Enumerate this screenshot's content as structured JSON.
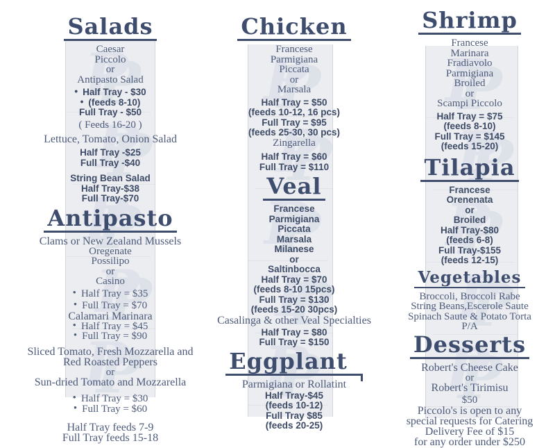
{
  "page": {
    "accent_color": "#3e4d6e",
    "body_text_color": "#4c5a7a",
    "strip_color": "#ecedf0",
    "watermark_letter": "P",
    "watermarks_per_strip": 5
  },
  "columns": [
    {
      "name": "left",
      "sections": [
        {
          "title": "Salads",
          "lines": [
            {
              "text": "Caesar",
              "font": "serif"
            },
            {
              "text": "Piccolo",
              "font": "serif"
            },
            {
              "text": "or",
              "font": "serif"
            },
            {
              "text": "Antipasto Salad",
              "font": "serif"
            },
            {
              "text": "Half Tray - $30",
              "font": "sans",
              "bullet": true,
              "gap_before": 4
            },
            {
              "text": "(feeds 8-10)",
              "font": "sans",
              "bullet": true
            },
            {
              "text": "Full Tray - $50",
              "font": "sans"
            },
            {
              "text": "( Feeds 16-20 )",
              "font": "serif",
              "gap_before": 3
            },
            {
              "text": "Lettuce, Tomato, Onion Salad",
              "font": "serif",
              "wide": true,
              "gap_before": 6
            },
            {
              "text": "Half Tray -$25",
              "font": "sans",
              "gap_before": 5
            },
            {
              "text": "Full Tray -$40",
              "font": "sans"
            },
            {
              "text": "String Bean Salad",
              "font": "sans",
              "gap_before": 8
            },
            {
              "text": "Half Tray-$38",
              "font": "sans"
            },
            {
              "text": "Full Tray-$70",
              "font": "sans"
            }
          ]
        },
        {
          "title": "Antipasto",
          "heading_gap": "mt4",
          "lines": [
            {
              "text": "Clams or New Zealand Mussels",
              "font": "serif",
              "wide": true
            },
            {
              "text": "Oregenate",
              "font": "serif"
            },
            {
              "text": "Possilipo",
              "font": "serif"
            },
            {
              "text": "or",
              "font": "serif"
            },
            {
              "text": "Casino",
              "font": "serif"
            },
            {
              "text": "Half Tray = $35",
              "font": "serif",
              "bullet": true,
              "gap_before": 3
            },
            {
              "text": "Full Tray = $70",
              "font": "serif",
              "bullet": true,
              "gap_before": 3
            },
            {
              "text": "Calamari Marinara",
              "font": "serif",
              "wide": true
            },
            {
              "text": "Half Tray = $45",
              "font": "serif",
              "bullet": true
            },
            {
              "text": "Full Tray = $90",
              "font": "serif",
              "bullet": true
            },
            {
              "text": "Sliced Tomato, Fresh Mozzarella and",
              "font": "serif",
              "wide": true,
              "gap_before": 7
            },
            {
              "text": "Red Roasted Peppers",
              "font": "serif",
              "wide": true
            },
            {
              "text": "or",
              "font": "serif"
            },
            {
              "text": "Sun-dried Tomato and Mozzarella",
              "font": "serif",
              "wide": true
            },
            {
              "text": "Half Tray = $30",
              "font": "serif",
              "bullet": true,
              "gap_before": 9
            },
            {
              "text": "Full Tray = $60",
              "font": "serif",
              "bullet": true
            },
            {
              "text": "Half Tray feeds 7-9",
              "font": "serif",
              "wide": true,
              "gap_before": 12
            },
            {
              "text": "Full Tray feeds 15-18",
              "font": "serif",
              "wide": true
            }
          ]
        }
      ]
    },
    {
      "name": "center",
      "sections": [
        {
          "title": "Chicken",
          "lines": [
            {
              "text": "Francese",
              "font": "serif"
            },
            {
              "text": "Parmigiana",
              "font": "serif"
            },
            {
              "text": "Piccata",
              "font": "serif"
            },
            {
              "text": "or",
              "font": "serif"
            },
            {
              "text": "Marsala",
              "font": "serif"
            },
            {
              "text": "Half Tray = $50",
              "font": "sans",
              "gap_before": 4
            },
            {
              "text": "(feeds 10-12, 16 pcs)",
              "font": "sans"
            },
            {
              "text": "Full Tray = $95",
              "font": "sans"
            },
            {
              "text": "(feeds 25-30, 30 pcs)",
              "font": "sans"
            },
            {
              "text": "Zingarella",
              "font": "serif"
            },
            {
              "text": "Half Tray = $60",
              "font": "sans",
              "gap_before": 6
            },
            {
              "text": "Full Tray = $110",
              "font": "sans"
            }
          ]
        },
        {
          "title": "Veal",
          "heading_gap": "mt4",
          "lines": [
            {
              "text": "Francese",
              "font": "sans"
            },
            {
              "text": "Parmigiana",
              "font": "sans"
            },
            {
              "text": "Piccata",
              "font": "sans"
            },
            {
              "text": "Marsala",
              "font": "sans"
            },
            {
              "text": "Milanese",
              "font": "sans"
            },
            {
              "text": "or",
              "font": "sans"
            },
            {
              "text": "Saltinbocca",
              "font": "sans"
            },
            {
              "text": "Half Tray = $70",
              "font": "sans"
            },
            {
              "text": "(feeds 8-10 15pcs)",
              "font": "sans"
            },
            {
              "text": "Full Tray = $130",
              "font": "sans"
            },
            {
              "text": "(feeds 15-20  30pcs)",
              "font": "sans"
            },
            {
              "text": "Casalinga & other Veal Specialties",
              "font": "serif",
              "wide": true
            },
            {
              "text": "Half Tray = $80",
              "font": "sans",
              "gap_before": 3
            },
            {
              "text": "Full Tray = $150",
              "font": "sans"
            }
          ]
        },
        {
          "title": "Eggplant",
          "heading_gap": "mt3",
          "underline_tick": true,
          "lines": [
            {
              "text": "Parmigiana or Rollatint",
              "font": "serif",
              "wide": true
            },
            {
              "text": "Half Tray-$45",
              "font": "sans",
              "gap_before": 2
            },
            {
              "text": "(feeds 10-12)",
              "font": "sans"
            },
            {
              "text": "Full Tray $85",
              "font": "sans"
            },
            {
              "text": "(feeds 20-25)",
              "font": "sans"
            }
          ]
        }
      ]
    },
    {
      "name": "right",
      "sections": [
        {
          "title": "Shrimp",
          "lines": [
            {
              "text": "Francese",
              "font": "serif"
            },
            {
              "text": "Marinara",
              "font": "serif"
            },
            {
              "text": "Fradiavolo",
              "font": "serif"
            },
            {
              "text": "Parmigiana",
              "font": "serif"
            },
            {
              "text": "Broiled",
              "font": "serif"
            },
            {
              "text": "or",
              "font": "serif"
            },
            {
              "text": "Scampi Piccolo",
              "font": "serif"
            },
            {
              "text": "Half Tray = $75",
              "font": "sans",
              "gap_before": 4
            },
            {
              "text": "(feeds 8-10)",
              "font": "sans"
            },
            {
              "text": "Full Tray = $145",
              "font": "sans"
            },
            {
              "text": "(feeds 15-20)",
              "font": "sans"
            }
          ]
        },
        {
          "title": "Tilapia",
          "heading_gap": "mt6",
          "lines": [
            {
              "text": "Francese",
              "font": "sans"
            },
            {
              "text": "Orenenata",
              "font": "sans"
            },
            {
              "text": "or",
              "font": "sans"
            },
            {
              "text": "Broiled",
              "font": "sans"
            },
            {
              "text": "Half Tray-$80",
              "font": "sans"
            },
            {
              "text": "(feeds 6-8)",
              "font": "sans"
            },
            {
              "text": "Full Tray-$155",
              "font": "sans"
            },
            {
              "text": "(feeds 12-15)",
              "font": "sans"
            }
          ]
        },
        {
          "title": "Vegetables",
          "heading_size": "md",
          "heading_gap": "mt4",
          "lines": [
            {
              "text": "Broccoli, Broccoli Rabe",
              "font": "serif"
            },
            {
              "text": "String Beans,Escerole Saute",
              "font": "serif"
            },
            {
              "text": "Spinach Saute & Potato Torta",
              "font": "serif"
            },
            {
              "text": "P/A",
              "font": "serif"
            }
          ]
        },
        {
          "title": "Desserts",
          "heading_gap": "mt2",
          "lines": [
            {
              "text": "Robert's Cheese Cake",
              "font": "serif",
              "wide": true
            },
            {
              "text": "or",
              "font": "serif"
            },
            {
              "text": "Robert's Tirimisu",
              "font": "serif",
              "wide": true
            },
            {
              "text": "$50",
              "font": "serif",
              "gap_before": 3
            },
            {
              "text": "Piccolo's is open to any",
              "font": "serif",
              "wide": true
            },
            {
              "text": "special requests for Catering",
              "font": "serif",
              "wide": true
            },
            {
              "text": "Delivery Fee of $15",
              "font": "serif",
              "wide": true
            },
            {
              "text": "for any order under $250",
              "font": "serif",
              "wide": true
            }
          ]
        }
      ]
    }
  ]
}
